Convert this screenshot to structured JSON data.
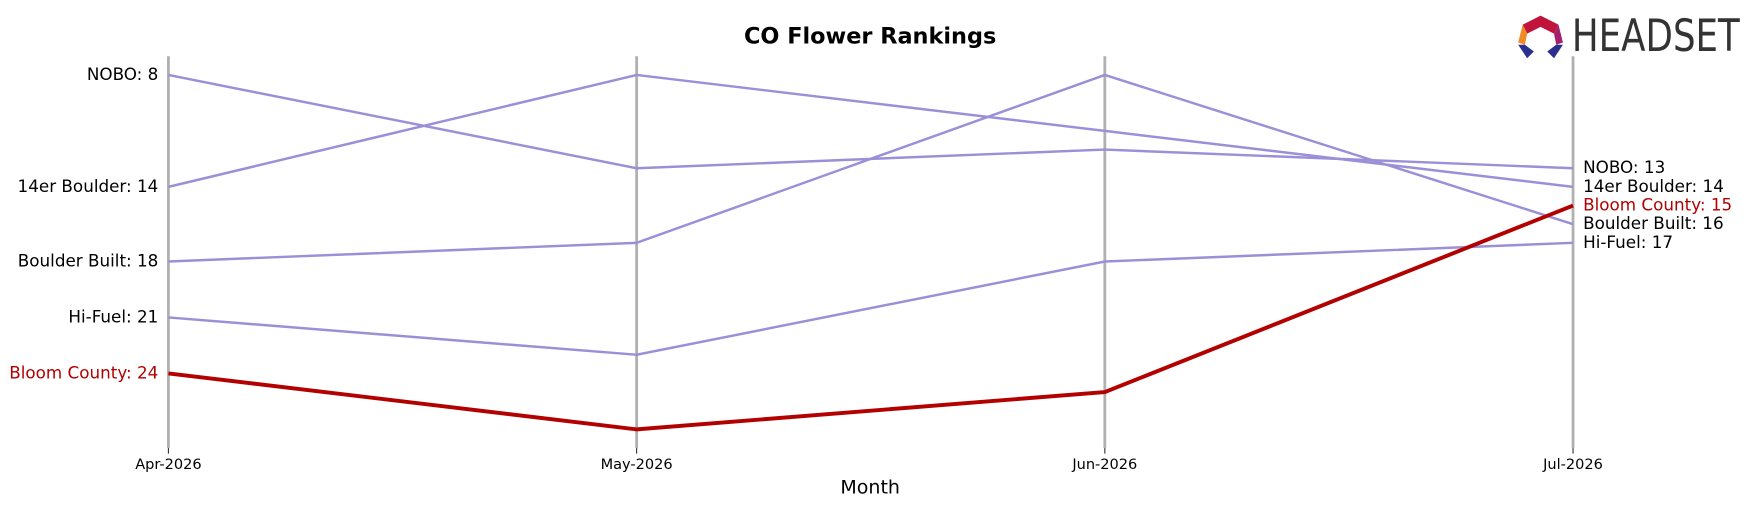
{
  "chart_data": {
    "type": "bump",
    "title": "CO Flower Rankings",
    "x_label": "Month",
    "logo_text": "HEADSET",
    "categories": [
      "Apr-2026",
      "May-2026",
      "Jun-2026",
      "Jul-2026"
    ],
    "ylim": [
      28,
      7
    ],
    "series": [
      {
        "name": "NOBO",
        "color": "#9b8fd8",
        "values": [
          8,
          13,
          12,
          13
        ],
        "value_labels": [
          "NOBO: 8",
          null,
          null,
          "NOBO: 13"
        ]
      },
      {
        "name": "14er Boulder",
        "color": "#9b8fd8",
        "values": [
          14,
          8,
          11,
          14
        ],
        "value_labels": [
          "14er Boulder: 14",
          null,
          null,
          "14er Boulder: 14"
        ]
      },
      {
        "name": "Boulder Built",
        "color": "#9b8fd8",
        "values": [
          18,
          17,
          8,
          16
        ],
        "value_labels": [
          "Boulder Built: 18",
          null,
          null,
          "Boulder Built: 16"
        ]
      },
      {
        "name": "Hi-Fuel",
        "color": "#9b8fd8",
        "values": [
          21,
          23,
          18,
          17
        ],
        "value_labels": [
          "Hi-Fuel: 21",
          null,
          null,
          "Hi-Fuel: 17"
        ]
      },
      {
        "name": "Bloom County",
        "color": "#b30000",
        "highlight": true,
        "values": [
          24,
          27,
          25,
          15
        ],
        "value_labels": [
          "Bloom County: 24",
          null,
          null,
          "Bloom County: 15"
        ]
      }
    ]
  }
}
